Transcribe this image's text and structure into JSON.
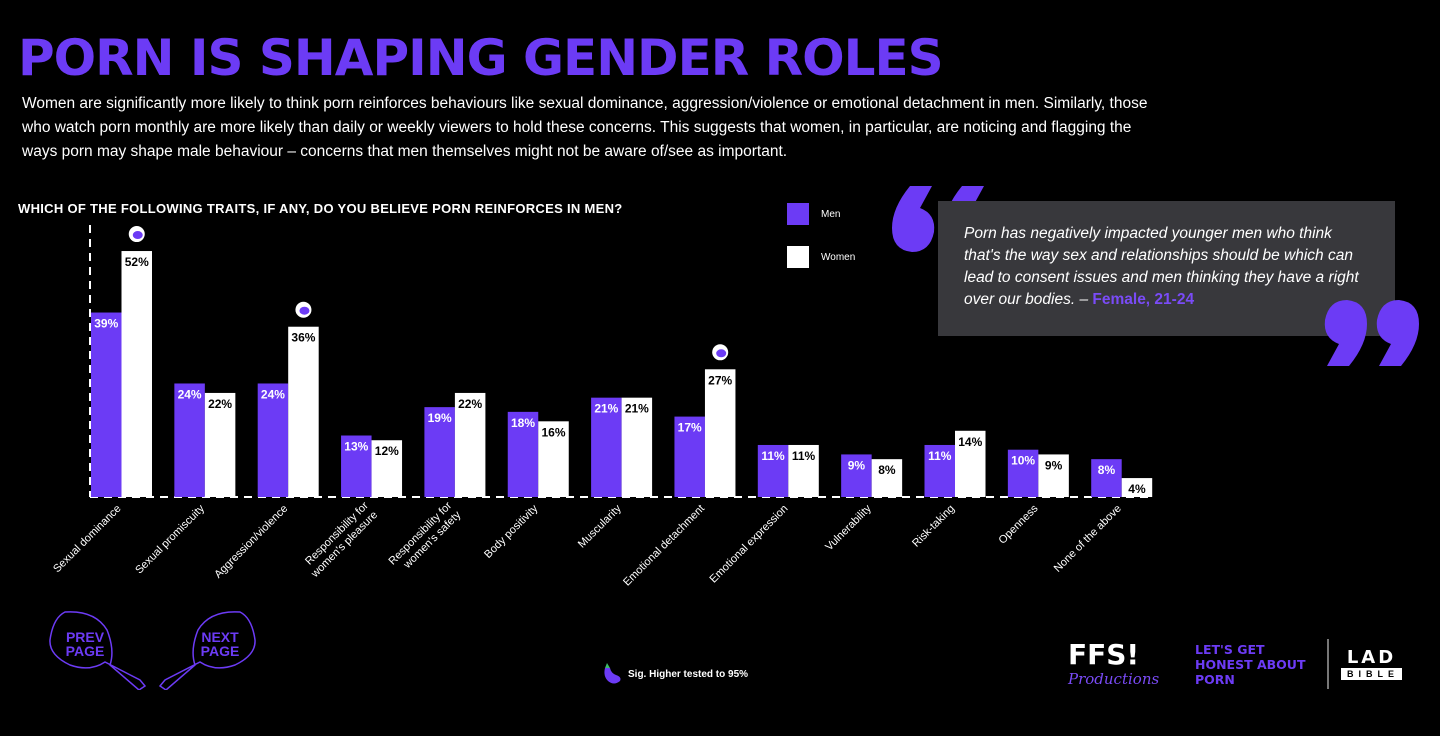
{
  "title": "PORN IS SHAPING GENDER ROLES",
  "intro": "Women are significantly more likely to think porn reinforces behaviours like sexual dominance, aggression/violence or emotional detachment in men. Similarly, those who watch porn monthly are more likely than daily or weekly viewers to hold these concerns. This suggests that women, in particular, are noticing and flagging the ways porn may shape male behaviour – concerns that men themselves might not be aware of/see as important.",
  "quote": {
    "text": "Porn has negatively impacted younger men who think that's the way sex and relationships should be which can lead to consent issues and men thinking they have a right over our bodies. –",
    "source": "Female, 21-24"
  },
  "nav": {
    "prev": "PREV PAGE",
    "next": "NEXT PAGE"
  },
  "sig_note": "Sig. Higher tested to 95%",
  "logos": {
    "ffs": "FFS!",
    "productions": "Productions",
    "campaign": "LET'S GET HONEST ABOUT PORN",
    "lad": "LAD",
    "bible": "BIBLE"
  },
  "colors": {
    "men": "#6c3bf5",
    "women": "#ffffff",
    "bg": "#000000"
  },
  "chart_data": {
    "type": "bar",
    "title": "WHICH OF THE FOLLOWING TRAITS, IF ANY, DO YOU BELIEVE PORN REINFORCES IN MEN?",
    "categories": [
      "Sexual dominance",
      "Sexual promiscuity",
      "Aggression/violence",
      "Responsibility for women's pleasure",
      "Responsibility for women's safety",
      "Body positivity",
      "Muscularity",
      "Emotional detachment",
      "Emotional expression",
      "Vulnerability",
      "Risk-taking",
      "Openness",
      "None of the above"
    ],
    "series": [
      {
        "name": "Men",
        "values": [
          39,
          24,
          24,
          13,
          19,
          18,
          21,
          17,
          11,
          9,
          11,
          10,
          8
        ]
      },
      {
        "name": "Women",
        "values": [
          52,
          22,
          36,
          12,
          22,
          16,
          21,
          27,
          11,
          8,
          14,
          9,
          4
        ]
      }
    ],
    "significant_women": [
      0,
      2,
      7
    ],
    "ylim": [
      0,
      57
    ],
    "legend": "top-right",
    "unit": "%"
  }
}
